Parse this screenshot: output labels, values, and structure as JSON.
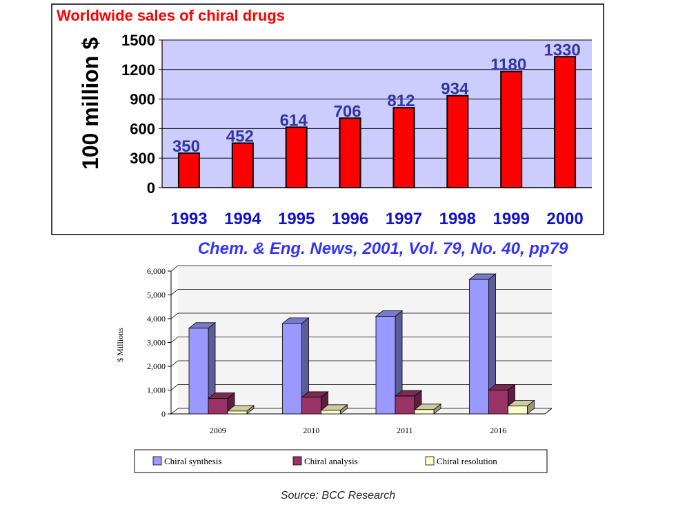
{
  "chart_data": [
    {
      "type": "bar",
      "title": "Worldwide sales of chiral drugs",
      "ylabel": "100 million $",
      "categories": [
        "1993",
        "1994",
        "1995",
        "1996",
        "1997",
        "1998",
        "1999",
        "2000"
      ],
      "values": [
        350,
        452,
        614,
        706,
        812,
        934,
        1180,
        1330
      ],
      "yticks": [
        "0",
        "300",
        "600",
        "900",
        "1200",
        "1500"
      ],
      "ylim": [
        0,
        1500
      ],
      "bar_color": "#ff0000",
      "title_color": "#ff0000",
      "label_color": "#3333aa",
      "plot_bg": "#ccccff",
      "grid": true
    },
    {
      "type": "bar",
      "ylabel": "$ Millions",
      "categories": [
        "2009",
        "2010",
        "2011",
        "2016"
      ],
      "yticks": [
        "0",
        "1,000",
        "2,000",
        "3,000",
        "4,000",
        "5,000",
        "6,000"
      ],
      "ylim": [
        0,
        6000
      ],
      "series": [
        {
          "name": "Chiral synthesis",
          "values": [
            3600,
            3800,
            4100,
            5650
          ],
          "color": "#9999ff"
        },
        {
          "name": "Chiral analysis",
          "values": [
            650,
            700,
            750,
            1000
          ],
          "color": "#993366"
        },
        {
          "name": "Chiral resolution",
          "values": [
            120,
            150,
            180,
            330
          ],
          "color": "#ffffcc"
        }
      ],
      "grid": true,
      "legend": "bottom"
    }
  ],
  "citation": "Chem. & Eng. News, 2001, Vol. 79, No. 40, pp79",
  "source": "Source: BCC Research"
}
